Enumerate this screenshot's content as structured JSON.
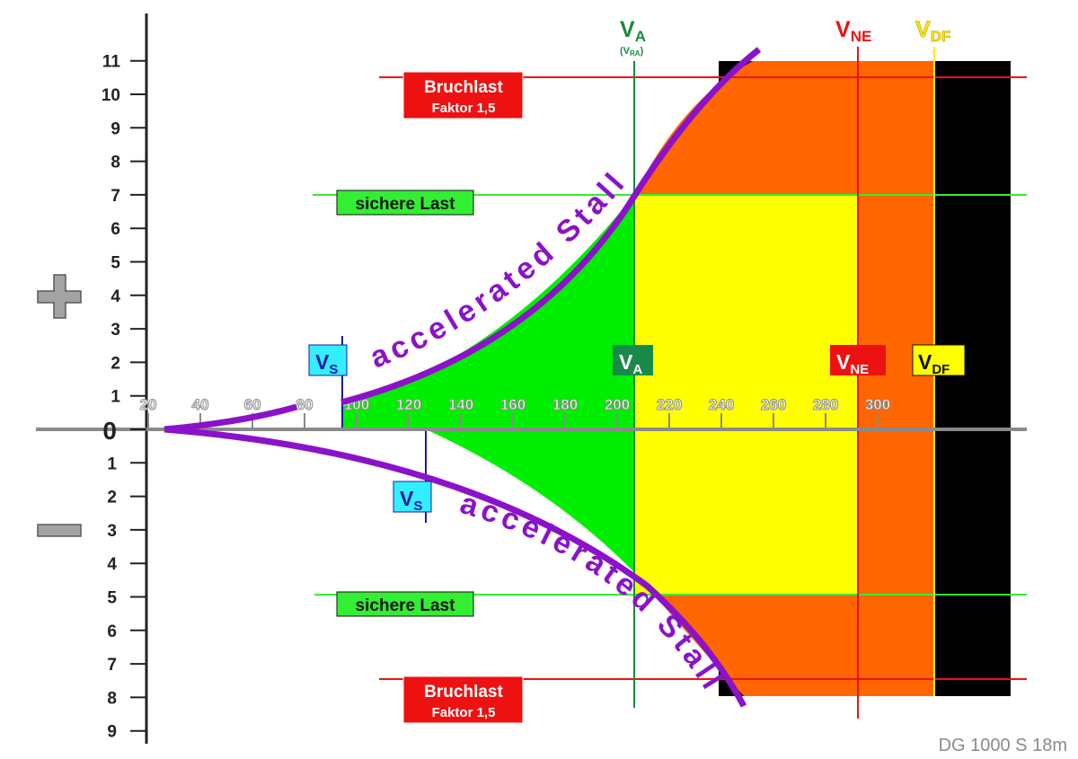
{
  "diagram": {
    "credit": "DG 1000 S  18m",
    "sign_plus": "+",
    "sign_minus": "−",
    "y_positive_labels": [
      "1",
      "2",
      "3",
      "4",
      "5",
      "6",
      "7",
      "8",
      "9",
      "10",
      "11"
    ],
    "y_zero_label": "0",
    "y_negative_labels": [
      "1",
      "2",
      "3",
      "4",
      "5",
      "6",
      "7",
      "8",
      "9"
    ],
    "x_labels": [
      "20",
      "40",
      "60",
      "80",
      "100",
      "120",
      "140",
      "160",
      "180",
      "200",
      "220",
      "240",
      "260",
      "280",
      "300"
    ],
    "top_speed_labels": {
      "va_main": "V",
      "va_sub": "A",
      "va_note": "(V",
      "va_note_sub": "RA",
      "va_note_close": ")",
      "vne_main": "V",
      "vne_sub": "NE",
      "vdf_main": "V",
      "vdf_sub": "DF"
    },
    "boxes": {
      "bruchlast_line1": "Bruchlast",
      "bruchlast_line2": "Faktor 1,5",
      "sichere_last": "sichere Last",
      "vs_main": "V",
      "vs_sub": "S",
      "va_main": "V",
      "va_sub": "A",
      "vne_main": "V",
      "vne_sub": "NE",
      "vdf_main": "V",
      "vdf_sub": "DF"
    },
    "stall_label_upper": "accelerated Stall",
    "stall_label_lower": "accelerated Stall",
    "limits": {
      "v_stall_positive": 75,
      "v_stall_negative": 107,
      "v_a": 185,
      "v_ne": 270,
      "v_df": 300,
      "safe_load_positive": 7,
      "safe_load_negative": 5,
      "ultimate_load_positive": 10.5,
      "ultimate_load_negative": 7.5
    },
    "colors": {
      "safe_zone": "#00ee00",
      "caution_zone": "#ffff00",
      "danger_zone": "#ff6600",
      "structural_zone": "#000000",
      "stall_curve": "#8b12c9",
      "va_line": "#1a8a3a",
      "vne_line": "#ee1111",
      "vdf_line": "#ffee00",
      "safe_load_line": "#33ee33",
      "ultimate_load_line": "#ee1111",
      "vs_line": "#1a1aaa",
      "vs_box": "#33eeff",
      "va_box": "#1a8a4a",
      "vne_box": "#ee1111",
      "vdf_box": "#ffff00",
      "bruchlast_box": "#ee1111",
      "sichere_last_box": "#33ee33"
    }
  }
}
